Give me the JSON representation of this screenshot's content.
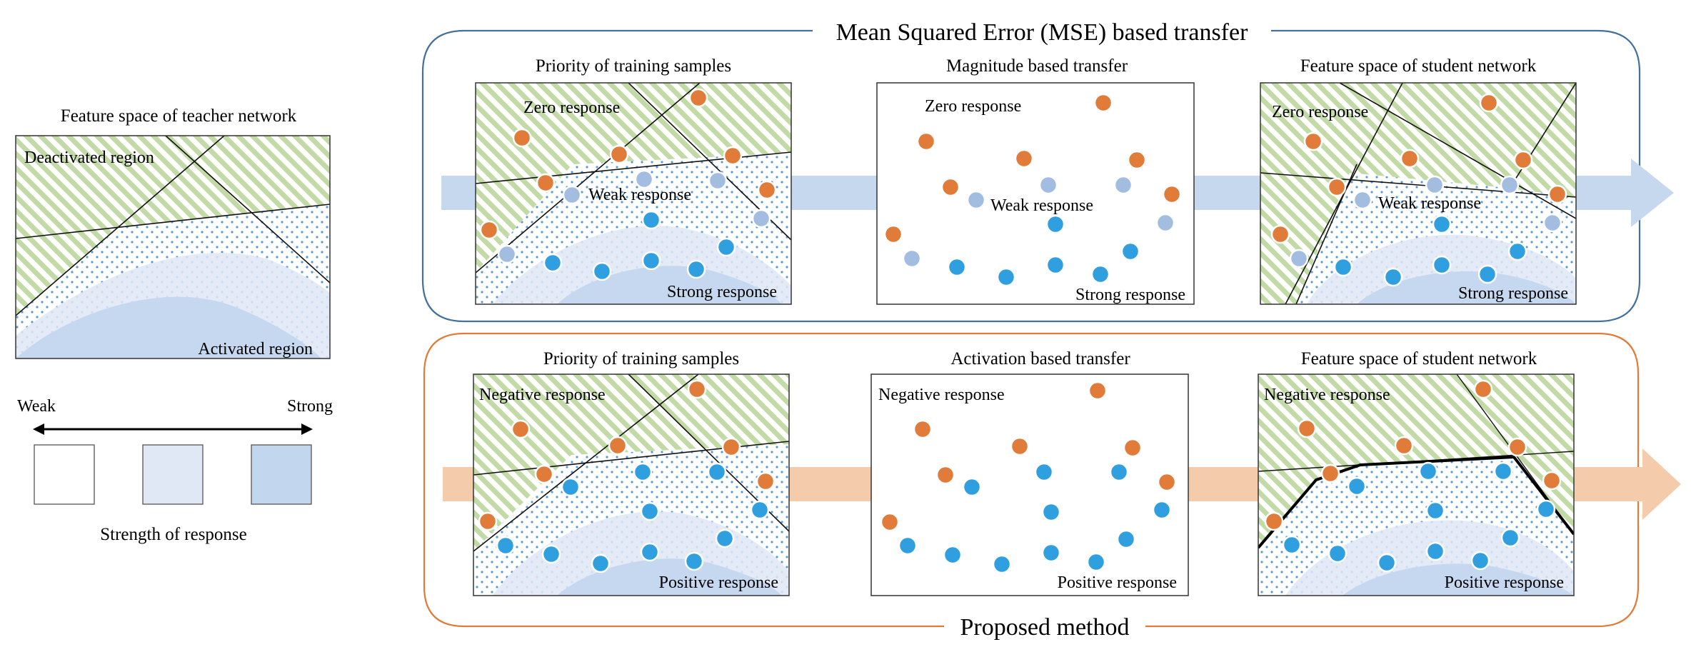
{
  "teacher": {
    "title": "Feature space of teacher network",
    "deactivated_label": "Deactivated region",
    "activated_label": "Activated region"
  },
  "legend": {
    "weak_label": "Weak",
    "strong_label": "Strong",
    "caption": "Strength of response",
    "swatch_colors": [
      "#ffffff",
      "#dfe8f4",
      "#c2d6ee"
    ]
  },
  "mse_panel": {
    "title": "Mean Squared Error (MSE) based transfer",
    "border_color": "#41719c",
    "arrow_color": "#c5d8ee",
    "priority": {
      "title": "Priority of training samples",
      "zero_label": "Zero response",
      "weak_label": "Weak response",
      "strong_label": "Strong response"
    },
    "magnitude": {
      "title": "Magnitude based transfer",
      "zero_label": "Zero response",
      "weak_label": "Weak response",
      "strong_label": "Strong response"
    },
    "student": {
      "title": "Feature space of student network",
      "zero_label": "Zero response",
      "weak_label": "Weak response",
      "strong_label": "Strong response"
    }
  },
  "proposed_panel": {
    "title": "Proposed method",
    "border_color": "#e07b39",
    "arrow_color": "#f4ccab",
    "priority": {
      "title": "Priority of training samples",
      "negative_label": "Negative response",
      "positive_label": "Positive response"
    },
    "activation": {
      "title": "Activation based transfer",
      "negative_label": "Negative response",
      "positive_label": "Positive response"
    },
    "student": {
      "title": "Feature space of student network",
      "negative_label": "Negative response",
      "positive_label": "Positive response"
    }
  },
  "colors": {
    "orange_dot": "#e07b39",
    "light_blue_dot": "#a3bde0",
    "blue_dot": "#2f9fe0",
    "green_hatch": "#b8d39a",
    "blue_dots_pattern": "#5b9bd5",
    "mid_blue_region": "#dfe8f4",
    "strong_blue_region": "#c2d6ee"
  }
}
